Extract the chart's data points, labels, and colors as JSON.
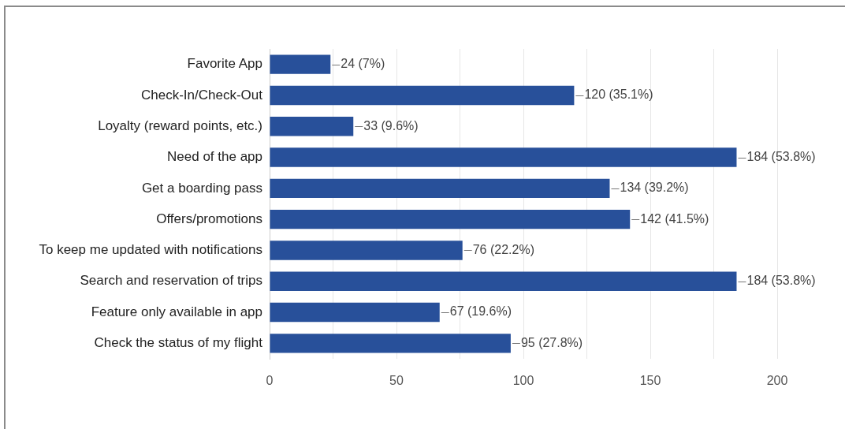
{
  "chart_data": {
    "type": "bar",
    "orientation": "horizontal",
    "categories": [
      "Favorite App",
      "Check-In/Check-Out",
      "Loyalty (reward points, etc.)",
      "Need of the app",
      "Get a boarding pass",
      "Offers/promotions",
      "To keep me updated with notifications",
      "Search and reservation of trips",
      "Feature only available in app",
      "Check the status of my flight"
    ],
    "values": [
      24,
      120,
      33,
      184,
      134,
      142,
      76,
      184,
      67,
      95
    ],
    "value_labels": [
      "24 (7%)",
      "120 (35.1%)",
      "33 (9.6%)",
      "184 (53.8%)",
      "134 (39.2%)",
      "142 (41.5%)",
      "76 (22.2%)",
      "184 (53.8%)",
      "67 (19.6%)",
      "95 (27.8%)"
    ],
    "color": "#28509a",
    "xlim": [
      0,
      200
    ],
    "xticks": [
      0,
      {
        "value": 25,
        "label": null
      },
      50,
      {
        "value": 75,
        "label": null
      },
      100,
      {
        "value": 125,
        "label": null
      },
      150,
      {
        "value": 175,
        "label": null
      },
      200
    ],
    "grid": "x"
  }
}
